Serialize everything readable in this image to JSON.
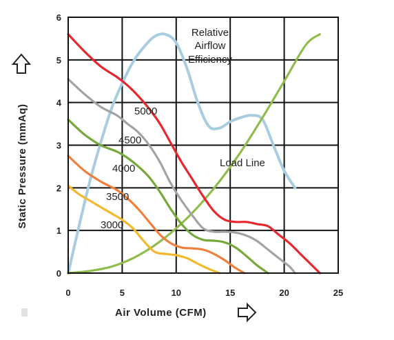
{
  "chart_data": {
    "type": "line",
    "xlabel": "Air Volume (CFM)",
    "ylabel": "Static Pressure (mmAq)",
    "xlim": [
      0,
      25
    ],
    "ylim": [
      0,
      6
    ],
    "xticks": [
      "0",
      "5",
      "10",
      "15",
      "20",
      "25"
    ],
    "yticks": [
      "0",
      "1",
      "2",
      "3",
      "4",
      "5",
      "6"
    ],
    "grid": true,
    "series": [
      {
        "name": "5000",
        "color": "#e8262c",
        "x": [
          0,
          1.5,
          3,
          4.5,
          5.5,
          6.5,
          7.5,
          8.5,
          9.5,
          10.5,
          11.5,
          12.5,
          13.5,
          14.5,
          15.5,
          16.5,
          17.5,
          18.5,
          19.5,
          20.5,
          21.5,
          22.5,
          23.3
        ],
        "y": [
          5.6,
          5.2,
          4.85,
          4.6,
          4.4,
          4.15,
          3.85,
          3.5,
          3.05,
          2.6,
          2.2,
          1.8,
          1.45,
          1.25,
          1.2,
          1.2,
          1.15,
          1.1,
          0.9,
          0.7,
          0.45,
          0.2,
          0
        ]
      },
      {
        "name": "4500",
        "color": "#a3a3a3",
        "x": [
          0,
          1.5,
          3,
          4.5,
          5.5,
          6.5,
          7.5,
          8.5,
          9.5,
          10.5,
          11.5,
          12.5,
          13.5,
          14.5,
          15.5,
          16.5,
          17.5,
          18.5,
          19.5,
          20.5,
          21
        ],
        "y": [
          4.55,
          4.2,
          3.9,
          3.7,
          3.5,
          3.3,
          3.0,
          2.6,
          2.1,
          1.7,
          1.35,
          1.05,
          0.97,
          0.97,
          0.95,
          0.88,
          0.75,
          0.55,
          0.35,
          0.15,
          0
        ]
      },
      {
        "name": "4000",
        "color": "#77a83a",
        "x": [
          0,
          1.5,
          3,
          4.5,
          5.5,
          6.5,
          7.5,
          8.5,
          9.5,
          10.5,
          11.5,
          12.5,
          13.5,
          14.5,
          15.5,
          16.5,
          17.5,
          18.5
        ],
        "y": [
          3.6,
          3.25,
          3.0,
          2.85,
          2.7,
          2.5,
          2.25,
          1.9,
          1.5,
          1.15,
          0.9,
          0.78,
          0.76,
          0.72,
          0.6,
          0.4,
          0.18,
          0
        ]
      },
      {
        "name": "3500",
        "color": "#ef7f3b",
        "x": [
          0,
          1.5,
          3,
          4.5,
          5.5,
          6.5,
          7.5,
          8.5,
          9.5,
          10.5,
          11.5,
          12.5,
          13.5,
          14.5,
          15.5,
          16.3
        ],
        "y": [
          2.75,
          2.4,
          2.15,
          1.95,
          1.75,
          1.5,
          1.2,
          0.9,
          0.7,
          0.6,
          0.58,
          0.55,
          0.45,
          0.3,
          0.12,
          0
        ]
      },
      {
        "name": "3000",
        "color": "#f3b82d",
        "x": [
          0,
          1,
          2,
          3,
          4,
          5,
          6,
          7,
          8,
          9,
          10,
          11,
          12,
          13,
          14
        ],
        "y": [
          2.05,
          1.85,
          1.7,
          1.55,
          1.4,
          1.25,
          1.05,
          0.75,
          0.5,
          0.45,
          0.42,
          0.35,
          0.22,
          0.1,
          0
        ]
      },
      {
        "name": "Load Line",
        "color": "#8fbd4a",
        "x": [
          0,
          2,
          4,
          6,
          8,
          10,
          12,
          14,
          16,
          18,
          20,
          22,
          23.3
        ],
        "y": [
          0,
          0.05,
          0.15,
          0.35,
          0.65,
          1.05,
          1.55,
          2.15,
          2.85,
          3.65,
          4.5,
          5.35,
          5.6
        ]
      },
      {
        "name": "Relative Airflow Efficiency",
        "color": "#a9cde0",
        "x": [
          0,
          1,
          2,
          3,
          4,
          5,
          6,
          7,
          8,
          9,
          10,
          11,
          12,
          13,
          14,
          15,
          16,
          17,
          18,
          19,
          20,
          21
        ],
        "y": [
          0,
          1.1,
          2.15,
          3.05,
          3.85,
          4.45,
          4.95,
          5.3,
          5.55,
          5.6,
          5.4,
          4.8,
          4.0,
          3.45,
          3.4,
          3.55,
          3.65,
          3.7,
          3.6,
          3.0,
          2.4,
          2.0
        ]
      }
    ],
    "annotations": {
      "5000": "5000",
      "4500": "4500",
      "4000": "4000",
      "3500": "3500",
      "3000": "3000",
      "load_line": "Load Line",
      "efficiency_line1": "Relative",
      "efficiency_line2": "Airflow",
      "efficiency_line3": "Efficiency"
    }
  }
}
